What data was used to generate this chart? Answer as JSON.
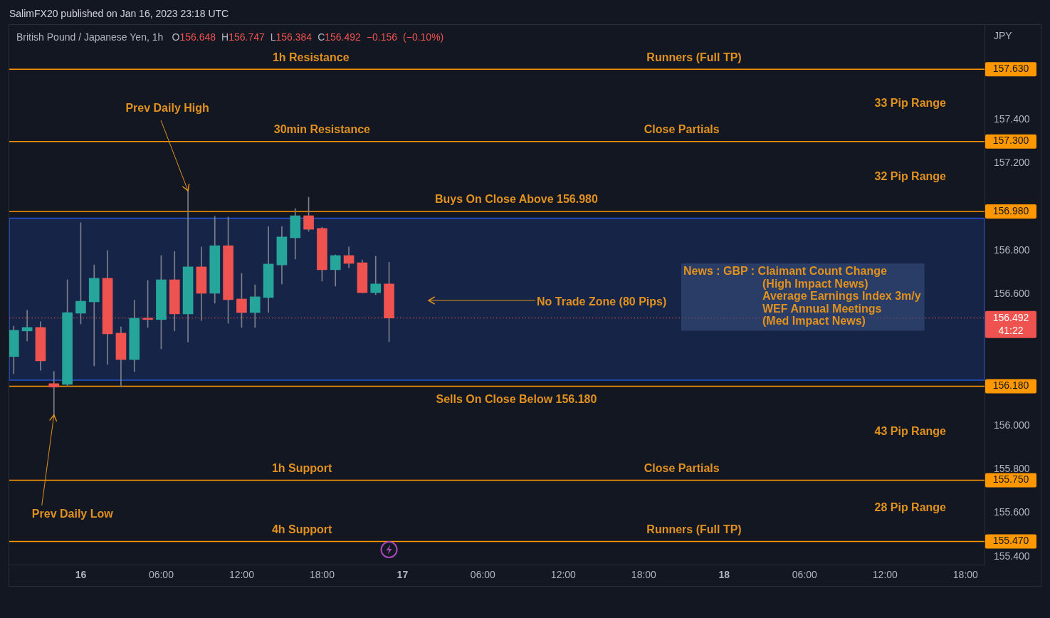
{
  "chart_data": {
    "type": "candlestick",
    "title": "British Pound / Japanese Yen, 1h",
    "subtitle": "O156.648 H156.747 L156.384 C156.492 −0.156 (−0.10%)",
    "ylabel": "JPY",
    "x": [
      "2023-01-15T19:00",
      "2023-01-15T20:00",
      "2023-01-15T21:00",
      "2023-01-15T22:00",
      "2023-01-15T23:00",
      "2023-01-16T00:00",
      "2023-01-16T01:00",
      "2023-01-16T02:00",
      "2023-01-16T03:00",
      "2023-01-16T04:00",
      "2023-01-16T05:00",
      "2023-01-16T06:00",
      "2023-01-16T07:00",
      "2023-01-16T08:00",
      "2023-01-16T09:00",
      "2023-01-16T10:00",
      "2023-01-16T11:00",
      "2023-01-16T12:00",
      "2023-01-16T13:00",
      "2023-01-16T14:00",
      "2023-01-16T15:00",
      "2023-01-16T16:00",
      "2023-01-16T17:00",
      "2023-01-16T18:00",
      "2023-01-16T19:00",
      "2023-01-16T20:00",
      "2023-01-16T21:00",
      "2023-01-16T22:00",
      "2023-01-16T23:00"
    ],
    "ohlc": [
      [
        156.316,
        156.455,
        156.237,
        156.436
      ],
      [
        156.433,
        156.527,
        156.387,
        156.449
      ],
      [
        156.449,
        156.475,
        156.253,
        156.296
      ],
      [
        156.192,
        156.248,
        156.049,
        156.176
      ],
      [
        156.188,
        156.667,
        156.18,
        156.517
      ],
      [
        156.514,
        156.928,
        156.465,
        156.569
      ],
      [
        156.566,
        156.735,
        156.273,
        156.674
      ],
      [
        156.674,
        156.801,
        156.28,
        156.42
      ],
      [
        156.423,
        156.452,
        156.177,
        156.302
      ],
      [
        156.302,
        156.573,
        156.247,
        156.491
      ],
      [
        156.491,
        156.664,
        156.449,
        156.485
      ],
      [
        156.485,
        156.778,
        156.351,
        156.667
      ],
      [
        156.667,
        156.797,
        156.433,
        156.511
      ],
      [
        156.511,
        157.074,
        156.382,
        156.726
      ],
      [
        156.726,
        156.817,
        156.481,
        156.605
      ],
      [
        156.605,
        156.957,
        156.56,
        156.823
      ],
      [
        156.823,
        156.954,
        156.468,
        156.576
      ],
      [
        156.579,
        156.696,
        156.449,
        156.517
      ],
      [
        156.517,
        156.644,
        156.449,
        156.589
      ],
      [
        156.586,
        156.911,
        156.517,
        156.739
      ],
      [
        156.735,
        156.911,
        156.648,
        156.863
      ],
      [
        156.859,
        156.993,
        156.762,
        156.96
      ],
      [
        156.96,
        157.045,
        156.889,
        156.898
      ],
      [
        156.902,
        156.908,
        156.661,
        156.713
      ],
      [
        156.713,
        156.781,
        156.638,
        156.778
      ],
      [
        156.778,
        156.817,
        156.722,
        156.742
      ],
      [
        156.745,
        156.758,
        156.608,
        156.608
      ],
      [
        156.608,
        156.775,
        156.599,
        156.648
      ],
      [
        156.648,
        156.747,
        156.384,
        156.492
      ]
    ],
    "colors": [
      "#26a69a",
      "#26a69a",
      "#ef5350",
      "#ef5350",
      "#26a69a",
      "#26a69a",
      "#26a69a",
      "#ef5350",
      "#ef5350",
      "#26a69a",
      "#ef5350",
      "#26a69a",
      "#ef5350",
      "#26a69a",
      "#ef5350",
      "#26a69a",
      "#ef5350",
      "#ef5350",
      "#26a69a",
      "#26a69a",
      "#26a69a",
      "#26a69a",
      "#ef5350",
      "#ef5350",
      "#26a69a",
      "#ef5350",
      "#ef5350",
      "#26a69a",
      "#ef5350"
    ],
    "xlim": [
      "2023-01-15T18:40",
      "2023-01-18T19:25"
    ],
    "ylim": [
      155.364,
      157.833
    ],
    "xticks": [
      {
        "value": "2023-01-16T00:00",
        "label": "16"
      },
      {
        "value": "2023-01-16T06:00",
        "label": "06:00"
      },
      {
        "value": "2023-01-16T12:00",
        "label": "12:00"
      },
      {
        "value": "2023-01-16T18:00",
        "label": "18:00"
      },
      {
        "value": "2023-01-17T00:00",
        "label": "17"
      },
      {
        "value": "2023-01-17T06:00",
        "label": "06:00"
      },
      {
        "value": "2023-01-17T12:00",
        "label": "12:00"
      },
      {
        "value": "2023-01-17T18:00",
        "label": "18:00"
      },
      {
        "value": "2023-01-18T00:00",
        "label": "18"
      },
      {
        "value": "2023-01-18T06:00",
        "label": "06:00"
      },
      {
        "value": "2023-01-18T12:00",
        "label": "12:00"
      },
      {
        "value": "2023-01-18T18:00",
        "label": "18:00"
      }
    ],
    "yticks": [
      {
        "value": 155.4,
        "label": "155.400"
      },
      {
        "value": 155.6,
        "label": "155.600"
      },
      {
        "value": 155.8,
        "label": "155.800"
      },
      {
        "value": 156.0,
        "label": "156.000"
      },
      {
        "value": 156.6,
        "label": "156.600"
      },
      {
        "value": 156.8,
        "label": "156.800"
      },
      {
        "value": 157.2,
        "label": "157.200"
      },
      {
        "value": 157.4,
        "label": "157.400"
      }
    ],
    "ref_lines": [
      {
        "axis": "y",
        "value": 157.63,
        "label": "157.630",
        "color": "#ff9800"
      },
      {
        "axis": "y",
        "value": 157.3,
        "label": "157.300",
        "color": "#ff9800"
      },
      {
        "axis": "y",
        "value": 156.98,
        "label": "156.980",
        "color": "#ff9800"
      },
      {
        "axis": "y",
        "value": 156.18,
        "label": "156.180",
        "color": "#ff9800"
      },
      {
        "axis": "y",
        "value": 155.75,
        "label": "155.750",
        "color": "#ff9800"
      },
      {
        "axis": "y",
        "value": 155.47,
        "label": "155.470",
        "color": "#ff9800"
      },
      {
        "axis": "y",
        "value": 156.492,
        "label": "156.492\n41:22",
        "color": "#ef5350",
        "line_style": "dotted"
      }
    ],
    "bands": [
      {
        "axis": "y",
        "from": 156.208,
        "to": 156.949,
        "color": "#2962ff"
      }
    ],
    "annotations": [
      "SalimFX20 published on Jan 16, 2023 23:18 UTC",
      "News : GBP : Claimant Count Change\n(High Impact News)\nAverage Earnings Index 3m/y\nWEF Annual Meetings\n(Med Impact News)",
      {
        "text": "Prev Daily High",
        "x": "2023-01-16T08:00",
        "y": 157.074
      },
      {
        "text": "Prev Daily Low",
        "x": "2023-01-15T22:00",
        "y": 156.049
      },
      "No Trade Zone (80 Pips)",
      {
        "text": "1h Resistance",
        "x": "2023-01-16T17:10",
        "y": 157.63
      },
      {
        "text": "Runners (Full TP)",
        "x": "2023-01-17T21:45",
        "y": 157.63
      },
      {
        "text": "30min Resistance",
        "x": "2023-01-16T18:00",
        "y": 157.3
      },
      {
        "text": "Close Partials",
        "x": "2023-01-17T20:50",
        "y": 157.3
      },
      {
        "text": "Buys On Close Above 156.980",
        "x": "2023-01-17T08:30",
        "y": 156.98
      },
      {
        "text": "Sells On Close Below 156.180",
        "x": "2023-01-17T08:30",
        "y": 156.18
      },
      {
        "text": "1h Support",
        "x": "2023-01-16T16:30",
        "y": 155.75
      },
      {
        "text": "Close Partials",
        "x": "2023-01-17T20:50",
        "y": 155.75
      },
      {
        "text": "4h Support",
        "x": "2023-01-16T16:30",
        "y": 155.47
      },
      {
        "text": "Runners (Full TP)",
        "x": "2023-01-17T21:45",
        "y": 155.47
      },
      "33 Pip Range",
      "32 Pip Range",
      "43 Pip Range",
      "28 Pip Range"
    ]
  }
}
